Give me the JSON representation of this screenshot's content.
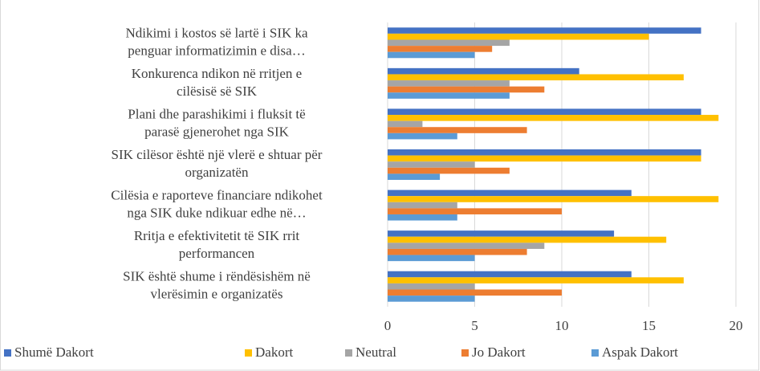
{
  "chart_data": {
    "type": "bar",
    "orientation": "horizontal",
    "categories": [
      "Ndikimi i kostos së lartë i SIK ka\npenguar informatizimin e disa…",
      "Konkurenca ndikon në rritjen e\ncilësisë së SIK",
      "Plani dhe parashikimi i fluksit të\nparasë gjenerohet nga SIK",
      "SIK cilësor është një vlerë e shtuar për\norganizatën",
      "Cilësia e raporteve financiare ndikohet\nnga SIK duke ndikuar edhe në…",
      "Rritja e efektivitetit të SIK rrit\nperformancen",
      "SIK është shume i rëndësishëm në\nvlerësimin e organizatës"
    ],
    "series": [
      {
        "name": "Shumë Dakort",
        "color": "#4472c4",
        "values": [
          18,
          11,
          18,
          18,
          14,
          13,
          14
        ]
      },
      {
        "name": "Dakort",
        "color": "#ffc000",
        "values": [
          15,
          17,
          19,
          18,
          19,
          16,
          17
        ]
      },
      {
        "name": "Neutral",
        "color": "#a5a5a5",
        "values": [
          7,
          7,
          2,
          5,
          4,
          9,
          5
        ]
      },
      {
        "name": "Jo Dakort",
        "color": "#ed7d31",
        "values": [
          6,
          9,
          8,
          7,
          10,
          8,
          10
        ]
      },
      {
        "name": "Aspak Dakort",
        "color": "#5b9bd5",
        "values": [
          5,
          7,
          4,
          3,
          4,
          5,
          5
        ]
      }
    ],
    "xlim": [
      0,
      20
    ],
    "xticks": [
      0,
      5,
      10,
      15,
      20
    ],
    "grid": true,
    "legend": "bottom"
  }
}
